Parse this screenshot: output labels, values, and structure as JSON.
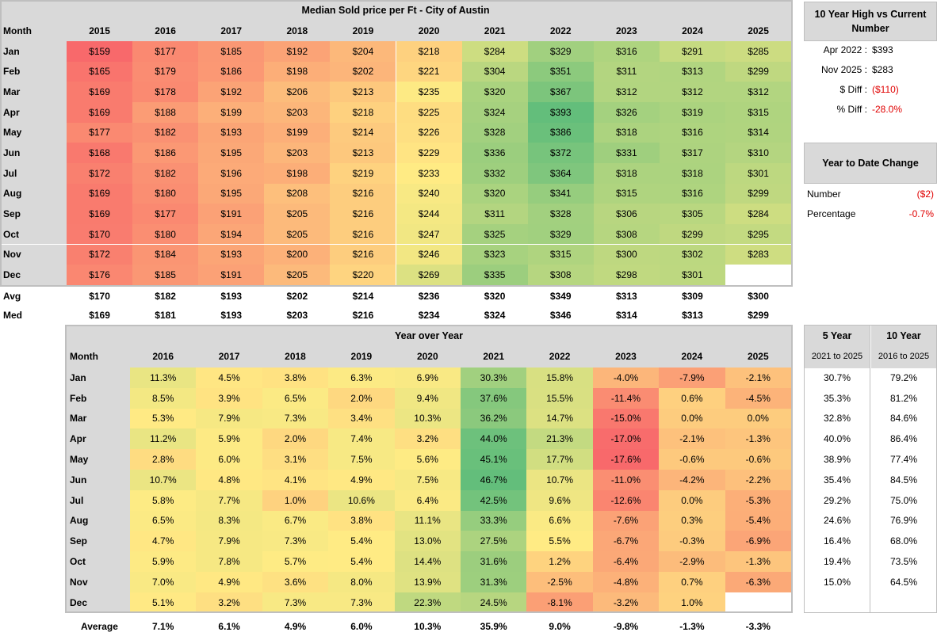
{
  "chart_data": [
    {
      "type": "heatmap",
      "title": "Median Sold price per Ft - City of Austin",
      "row_header": "Month",
      "columns": [
        "2015",
        "2016",
        "2017",
        "2018",
        "2019",
        "2020",
        "2021",
        "2022",
        "2023",
        "2024",
        "2025"
      ],
      "rows": [
        "Jan",
        "Feb",
        "Mar",
        "Apr",
        "May",
        "Jun",
        "Jul",
        "Aug",
        "Sep",
        "Oct",
        "Nov",
        "Dec"
      ],
      "values": [
        [
          159,
          177,
          185,
          192,
          204,
          218,
          284,
          329,
          316,
          291,
          285
        ],
        [
          165,
          179,
          186,
          198,
          202,
          221,
          304,
          351,
          311,
          313,
          299
        ],
        [
          169,
          178,
          192,
          206,
          213,
          235,
          320,
          367,
          312,
          312,
          312
        ],
        [
          169,
          188,
          199,
          203,
          218,
          225,
          324,
          393,
          326,
          319,
          315
        ],
        [
          177,
          182,
          193,
          199,
          214,
          226,
          328,
          386,
          318,
          316,
          314
        ],
        [
          168,
          186,
          195,
          203,
          213,
          229,
          336,
          372,
          331,
          317,
          310
        ],
        [
          172,
          182,
          196,
          198,
          219,
          233,
          332,
          364,
          318,
          318,
          301
        ],
        [
          169,
          180,
          195,
          208,
          216,
          240,
          320,
          341,
          315,
          316,
          299
        ],
        [
          169,
          177,
          191,
          205,
          216,
          244,
          311,
          328,
          306,
          305,
          284
        ],
        [
          170,
          180,
          194,
          205,
          216,
          247,
          325,
          329,
          308,
          299,
          295
        ],
        [
          172,
          184,
          193,
          200,
          216,
          246,
          323,
          315,
          300,
          302,
          283
        ],
        [
          176,
          185,
          191,
          205,
          220,
          269,
          335,
          308,
          298,
          301,
          null
        ]
      ],
      "display": [
        [
          "$159",
          "$177",
          "$185",
          "$192",
          "$204",
          "$218",
          "$284",
          "$329",
          "$316",
          "$291",
          "$285"
        ],
        [
          "$165",
          "$179",
          "$186",
          "$198",
          "$202",
          "$221",
          "$304",
          "$351",
          "$311",
          "$313",
          "$299"
        ],
        [
          "$169",
          "$178",
          "$192",
          "$206",
          "$213",
          "$235",
          "$320",
          "$367",
          "$312",
          "$312",
          "$312"
        ],
        [
          "$169",
          "$188",
          "$199",
          "$203",
          "$218",
          "$225",
          "$324",
          "$393",
          "$326",
          "$319",
          "$315"
        ],
        [
          "$177",
          "$182",
          "$193",
          "$199",
          "$214",
          "$226",
          "$328",
          "$386",
          "$318",
          "$316",
          "$314"
        ],
        [
          "$168",
          "$186",
          "$195",
          "$203",
          "$213",
          "$229",
          "$336",
          "$372",
          "$331",
          "$317",
          "$310"
        ],
        [
          "$172",
          "$182",
          "$196",
          "$198",
          "$219",
          "$233",
          "$332",
          "$364",
          "$318",
          "$318",
          "$301"
        ],
        [
          "$169",
          "$180",
          "$195",
          "$208",
          "$216",
          "$240",
          "$320",
          "$341",
          "$315",
          "$316",
          "$299"
        ],
        [
          "$169",
          "$177",
          "$191",
          "$205",
          "$216",
          "$244",
          "$311",
          "$328",
          "$306",
          "$305",
          "$284"
        ],
        [
          "$170",
          "$180",
          "$194",
          "$205",
          "$216",
          "$247",
          "$325",
          "$329",
          "$308",
          "$299",
          "$295"
        ],
        [
          "$172",
          "$184",
          "$193",
          "$200",
          "$216",
          "$246",
          "$323",
          "$315",
          "$300",
          "$302",
          "$283"
        ],
        [
          "$176",
          "$185",
          "$191",
          "$205",
          "$220",
          "$269",
          "$335",
          "$308",
          "$298",
          "$301",
          ""
        ]
      ],
      "summary_rows": [
        {
          "label": "Avg",
          "values": [
            "$170",
            "$182",
            "$193",
            "$202",
            "$214",
            "$236",
            "$320",
            "$349",
            "$313",
            "$309",
            "$300"
          ]
        },
        {
          "label": "Med",
          "values": [
            "$169",
            "$181",
            "$193",
            "$203",
            "$216",
            "$234",
            "$324",
            "$346",
            "$314",
            "$313",
            "$299"
          ]
        }
      ]
    },
    {
      "type": "heatmap",
      "title": "Year over Year",
      "row_header": "Month",
      "columns": [
        "2016",
        "2017",
        "2018",
        "2019",
        "2020",
        "2021",
        "2022",
        "2023",
        "2024",
        "2025"
      ],
      "rows": [
        "Jan",
        "Feb",
        "Mar",
        "Apr",
        "May",
        "Jun",
        "Jul",
        "Aug",
        "Sep",
        "Oct",
        "Nov",
        "Dec"
      ],
      "values": [
        [
          11.3,
          4.5,
          3.8,
          6.3,
          6.9,
          30.3,
          15.8,
          -4.0,
          -7.9,
          -2.1
        ],
        [
          8.5,
          3.9,
          6.5,
          2.0,
          9.4,
          37.6,
          15.5,
          -11.4,
          0.6,
          -4.5
        ],
        [
          5.3,
          7.9,
          7.3,
          3.4,
          10.3,
          36.2,
          14.7,
          -15.0,
          0.0,
          0.0
        ],
        [
          11.2,
          5.9,
          2.0,
          7.4,
          3.2,
          44.0,
          21.3,
          -17.0,
          -2.1,
          -1.3
        ],
        [
          2.8,
          6.0,
          3.1,
          7.5,
          5.6,
          45.1,
          17.7,
          -17.6,
          -0.6,
          -0.6
        ],
        [
          10.7,
          4.8,
          4.1,
          4.9,
          7.5,
          46.7,
          10.7,
          -11.0,
          -4.2,
          -2.2
        ],
        [
          5.8,
          7.7,
          1.0,
          10.6,
          6.4,
          42.5,
          9.6,
          -12.6,
          0.0,
          -5.3
        ],
        [
          6.5,
          8.3,
          6.7,
          3.8,
          11.1,
          33.3,
          6.6,
          -7.6,
          0.3,
          -5.4
        ],
        [
          4.7,
          7.9,
          7.3,
          5.4,
          13.0,
          27.5,
          5.5,
          -6.7,
          -0.3,
          -6.9
        ],
        [
          5.9,
          7.8,
          5.7,
          5.4,
          14.4,
          31.6,
          1.2,
          -6.4,
          -2.9,
          -1.3
        ],
        [
          7.0,
          4.9,
          3.6,
          8.0,
          13.9,
          31.3,
          -2.5,
          -4.8,
          0.7,
          -6.3
        ],
        [
          5.1,
          3.2,
          7.3,
          7.3,
          22.3,
          24.5,
          -8.1,
          -3.2,
          1.0,
          null
        ]
      ],
      "display": [
        [
          "11.3%",
          "4.5%",
          "3.8%",
          "6.3%",
          "6.9%",
          "30.3%",
          "15.8%",
          "-4.0%",
          "-7.9%",
          "-2.1%"
        ],
        [
          "8.5%",
          "3.9%",
          "6.5%",
          "2.0%",
          "9.4%",
          "37.6%",
          "15.5%",
          "-11.4%",
          "0.6%",
          "-4.5%"
        ],
        [
          "5.3%",
          "7.9%",
          "7.3%",
          "3.4%",
          "10.3%",
          "36.2%",
          "14.7%",
          "-15.0%",
          "0.0%",
          "0.0%"
        ],
        [
          "11.2%",
          "5.9%",
          "2.0%",
          "7.4%",
          "3.2%",
          "44.0%",
          "21.3%",
          "-17.0%",
          "-2.1%",
          "-1.3%"
        ],
        [
          "2.8%",
          "6.0%",
          "3.1%",
          "7.5%",
          "5.6%",
          "45.1%",
          "17.7%",
          "-17.6%",
          "-0.6%",
          "-0.6%"
        ],
        [
          "10.7%",
          "4.8%",
          "4.1%",
          "4.9%",
          "7.5%",
          "46.7%",
          "10.7%",
          "-11.0%",
          "-4.2%",
          "-2.2%"
        ],
        [
          "5.8%",
          "7.7%",
          "1.0%",
          "10.6%",
          "6.4%",
          "42.5%",
          "9.6%",
          "-12.6%",
          "0.0%",
          "-5.3%"
        ],
        [
          "6.5%",
          "8.3%",
          "6.7%",
          "3.8%",
          "11.1%",
          "33.3%",
          "6.6%",
          "-7.6%",
          "0.3%",
          "-5.4%"
        ],
        [
          "4.7%",
          "7.9%",
          "7.3%",
          "5.4%",
          "13.0%",
          "27.5%",
          "5.5%",
          "-6.7%",
          "-0.3%",
          "-6.9%"
        ],
        [
          "5.9%",
          "7.8%",
          "5.7%",
          "5.4%",
          "14.4%",
          "31.6%",
          "1.2%",
          "-6.4%",
          "-2.9%",
          "-1.3%"
        ],
        [
          "7.0%",
          "4.9%",
          "3.6%",
          "8.0%",
          "13.9%",
          "31.3%",
          "-2.5%",
          "-4.8%",
          "0.7%",
          "-6.3%"
        ],
        [
          "5.1%",
          "3.2%",
          "7.3%",
          "7.3%",
          "22.3%",
          "24.5%",
          "-8.1%",
          "-3.2%",
          "1.0%",
          ""
        ]
      ],
      "summary_rows": [
        {
          "label": "Average",
          "values": [
            "7.1%",
            "6.1%",
            "4.9%",
            "6.0%",
            "10.3%",
            "35.9%",
            "9.0%",
            "-9.8%",
            "-1.3%",
            "-3.3%"
          ]
        }
      ]
    },
    {
      "type": "table",
      "headers": [
        {
          "title": "5 Year",
          "sub": "2021 to 2025"
        },
        {
          "title": "10 Year",
          "sub": "2016 to 2025"
        }
      ],
      "rows": [
        [
          "30.7%",
          "79.2%"
        ],
        [
          "35.3%",
          "81.2%"
        ],
        [
          "32.8%",
          "84.6%"
        ],
        [
          "40.0%",
          "86.4%"
        ],
        [
          "38.9%",
          "77.4%"
        ],
        [
          "35.4%",
          "84.5%"
        ],
        [
          "29.2%",
          "75.0%"
        ],
        [
          "24.6%",
          "76.9%"
        ],
        [
          "16.4%",
          "68.0%"
        ],
        [
          "19.4%",
          "73.5%"
        ],
        [
          "15.0%",
          "64.5%"
        ]
      ]
    }
  ],
  "high_vs_current": {
    "title": "10 Year High vs Current Number",
    "items": [
      {
        "key": "Apr 2022 :",
        "value": "$393",
        "negative": false
      },
      {
        "key": "Nov 2025 :",
        "value": "$283",
        "negative": false
      },
      {
        "key": "$ Diff :",
        "value": "($110)",
        "negative": true
      },
      {
        "key": "% Diff :",
        "value": "-28.0%",
        "negative": true
      }
    ]
  },
  "ytd_change": {
    "title": "Year to Date Change",
    "items": [
      {
        "key": "Number",
        "value": "($2)",
        "negative": true
      },
      {
        "key": "Percentage",
        "value": "-0.7%",
        "negative": true
      }
    ]
  },
  "colors": {
    "low": "#f8696b",
    "mid": "#ffeb84",
    "high": "#63be7b",
    "header_bg": "#d9d9d9",
    "border": "#bfbfbf",
    "negative_text": "#e00000"
  }
}
